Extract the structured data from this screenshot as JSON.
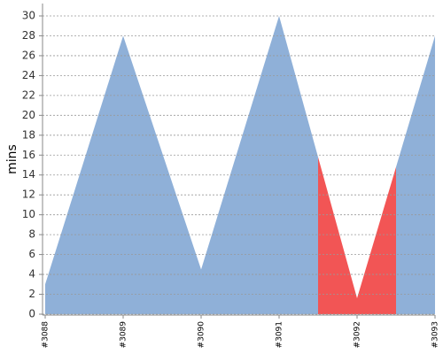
{
  "chart_data": {
    "type": "area",
    "y_label": "mins",
    "categories": [
      "#3088",
      "#3089",
      "#3090",
      "#3091",
      "#3092",
      "#3093"
    ],
    "values": [
      3,
      28,
      4.5,
      30,
      1.6,
      28
    ],
    "colors": [
      "#8fb0d8",
      "#8fb0d8",
      "#8fb0d8",
      "#8fb0d8",
      "#f25555",
      "#8fb0d8"
    ],
    "ylim": [
      0,
      30
    ],
    "yticks": [
      0,
      2,
      4,
      6,
      8,
      10,
      12,
      14,
      16,
      18,
      20,
      22,
      24,
      26,
      28,
      30
    ],
    "grid": true
  }
}
